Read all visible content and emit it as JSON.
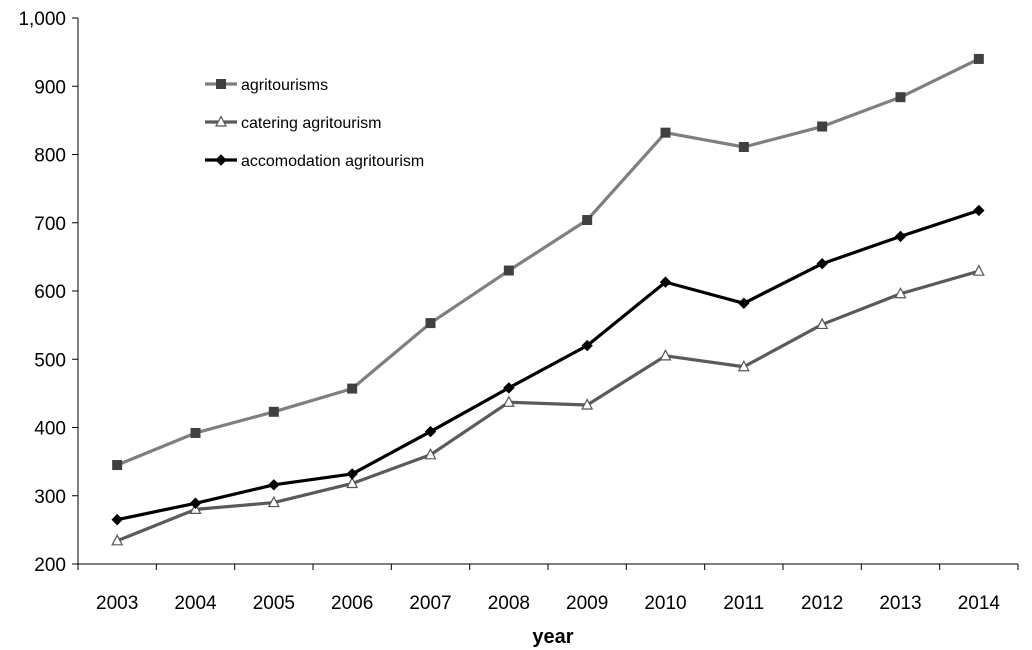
{
  "chart_data": {
    "type": "line",
    "title": "",
    "xlabel": "year",
    "ylabel": "",
    "categories": [
      "2003",
      "2004",
      "2005",
      "2006",
      "2007",
      "2008",
      "2009",
      "2010",
      "2011",
      "2012",
      "2013",
      "2014"
    ],
    "ylim": [
      200,
      1000
    ],
    "yticks": [
      200,
      300,
      400,
      500,
      600,
      700,
      800,
      900,
      1000
    ],
    "ytick_labels": [
      "200",
      "300",
      "400",
      "500",
      "600",
      "700",
      "800",
      "900",
      "1,000"
    ],
    "grid": false,
    "legend_position": "top-left",
    "series": [
      {
        "name": "agritourisms",
        "marker": "square",
        "color": "#7f7f7f",
        "marker_color": "#404040",
        "values": [
          345,
          392,
          423,
          457,
          553,
          630,
          704,
          832,
          811,
          841,
          884,
          940
        ]
      },
      {
        "name": "catering agritourism",
        "marker": "triangle",
        "color": "#5a5a5a",
        "marker_color": "#ffffff",
        "values": [
          234,
          280,
          290,
          318,
          360,
          437,
          433,
          505,
          489,
          551,
          596,
          629
        ]
      },
      {
        "name": "accomodation agritourism",
        "marker": "diamond",
        "color": "#000000",
        "marker_color": "#000000",
        "values": [
          265,
          289,
          316,
          332,
          394,
          458,
          520,
          613,
          582,
          640,
          680,
          718
        ]
      }
    ]
  }
}
